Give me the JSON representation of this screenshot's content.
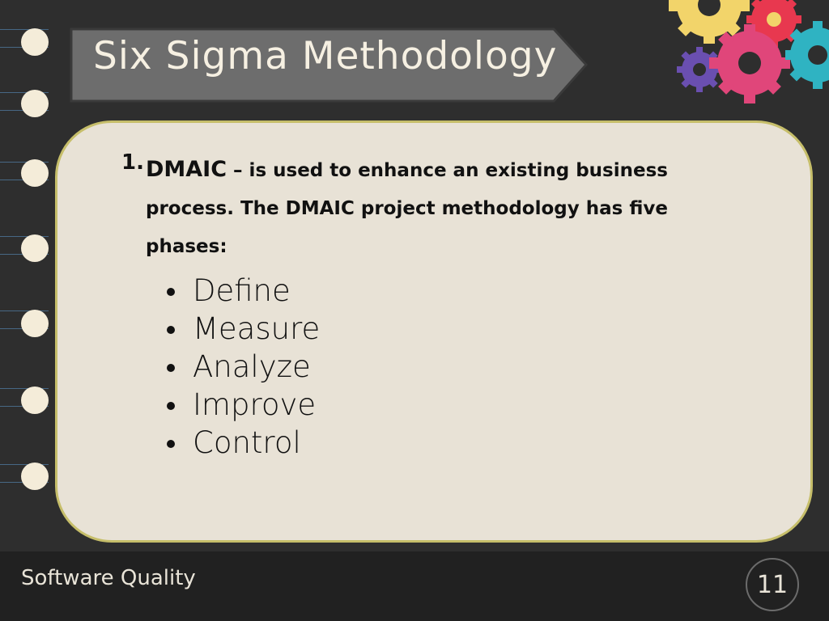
{
  "slide": {
    "title": "Six Sigma Methodology",
    "item_number": "1.",
    "item_lead": "DMAIC",
    "item_text": " – is used to enhance an existing business process. The DMAIC project methodology has five phases:",
    "phases": [
      "Define",
      "Measure",
      "Analyze",
      "Improve",
      "Control"
    ]
  },
  "footer": {
    "label": "Software Quality",
    "page_number": "11"
  },
  "colors": {
    "background": "#2e2e2e",
    "card": "#e8e2d6",
    "card_border": "#c6be6a",
    "banner": "#6d6d6d",
    "hole": "#f4ecd9",
    "gear_yellow": "#f2d46a",
    "gear_red": "#e8384f",
    "gear_pink": "#e0467a",
    "gear_purple": "#6a4fb0",
    "gear_teal": "#2fb3c2"
  }
}
